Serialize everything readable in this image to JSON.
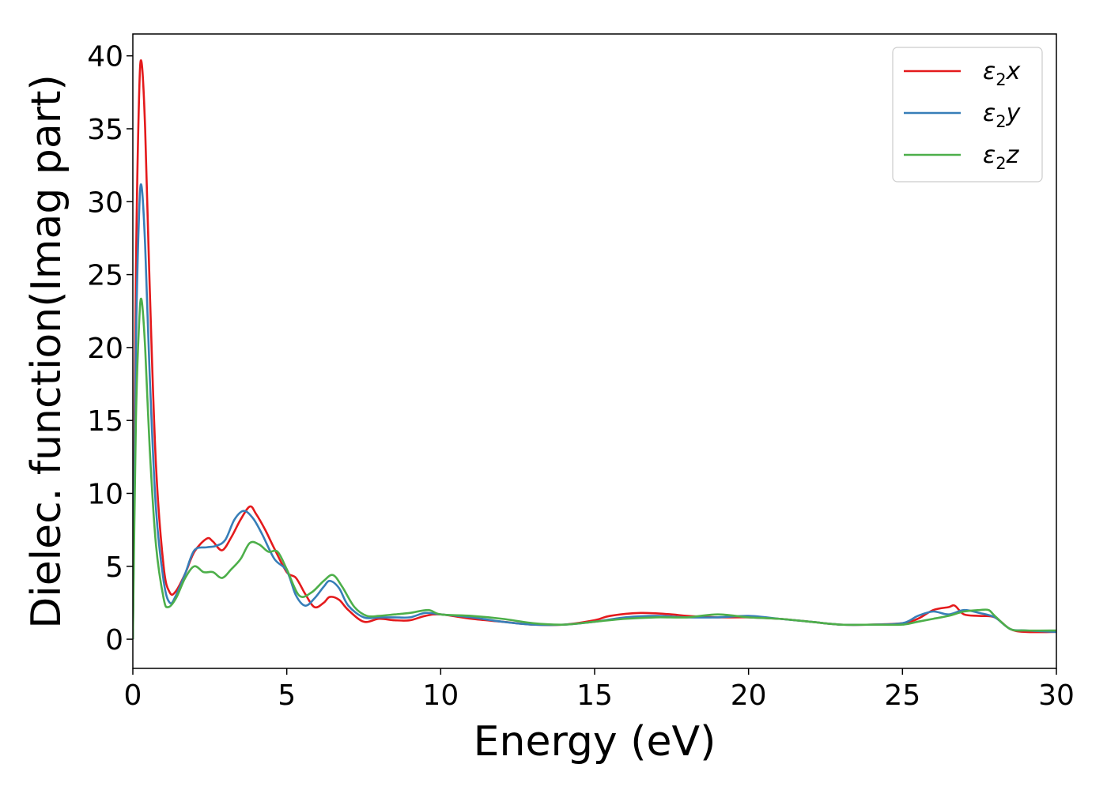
{
  "chart_data": {
    "type": "line",
    "title": "",
    "xlabel": "Energy (eV)",
    "ylabel": "Dielec. function(Imag part)",
    "xlim": [
      0,
      30
    ],
    "ylim": [
      -2,
      41.5
    ],
    "xticks": [
      0,
      5,
      10,
      15,
      20,
      25,
      30
    ],
    "yticks": [
      0,
      5,
      10,
      15,
      20,
      25,
      30,
      35,
      40
    ],
    "grid": false,
    "legend": {
      "position": "top-right"
    },
    "series": [
      {
        "name": "ε2x",
        "label_base": "ε",
        "label_sub": "2",
        "label_suffix": "x",
        "color": "#e41a1c",
        "x": [
          0,
          0.1,
          0.2,
          0.28,
          0.4,
          0.55,
          0.75,
          1.0,
          1.2,
          1.4,
          1.7,
          2.0,
          2.4,
          2.6,
          2.9,
          3.2,
          3.5,
          3.8,
          4.0,
          4.3,
          4.6,
          5.0,
          5.3,
          5.6,
          5.9,
          6.2,
          6.4,
          6.7,
          7.0,
          7.5,
          8.0,
          8.5,
          9.0,
          9.5,
          10.0,
          11.0,
          12.0,
          13.0,
          14.0,
          15.0,
          15.5,
          16.5,
          17.5,
          18.0,
          19.0,
          20.0,
          21.0,
          22.0,
          23.0,
          24.0,
          25.0,
          25.5,
          26.0,
          26.5,
          26.7,
          27.0,
          27.5,
          28.0,
          28.5,
          29.0,
          30.0
        ],
        "y": [
          0,
          25,
          37,
          39.6,
          35,
          24,
          12,
          5,
          3.2,
          3.3,
          4.5,
          6.0,
          6.9,
          6.7,
          6.1,
          7.0,
          8.2,
          9.1,
          8.6,
          7.5,
          6.2,
          4.6,
          4.2,
          3.1,
          2.2,
          2.5,
          2.9,
          2.7,
          2.0,
          1.2,
          1.4,
          1.3,
          1.3,
          1.6,
          1.7,
          1.4,
          1.2,
          1.0,
          1.0,
          1.3,
          1.6,
          1.8,
          1.7,
          1.6,
          1.5,
          1.5,
          1.4,
          1.2,
          1.0,
          1.0,
          1.1,
          1.4,
          2.0,
          2.2,
          2.3,
          1.7,
          1.6,
          1.5,
          0.7,
          0.5,
          0.5
        ]
      },
      {
        "name": "ε2y",
        "label_base": "ε",
        "label_sub": "2",
        "label_suffix": "y",
        "color": "#377eb8",
        "x": [
          0,
          0.1,
          0.2,
          0.28,
          0.4,
          0.55,
          0.75,
          1.0,
          1.2,
          1.4,
          1.7,
          2.0,
          2.4,
          2.7,
          3.0,
          3.3,
          3.6,
          3.9,
          4.2,
          4.6,
          5.0,
          5.3,
          5.6,
          5.9,
          6.2,
          6.4,
          6.7,
          7.0,
          7.5,
          8.0,
          8.5,
          9.0,
          9.5,
          10.0,
          11.0,
          12.0,
          13.0,
          14.0,
          15.0,
          16.0,
          17.0,
          18.0,
          19.0,
          20.0,
          21.0,
          22.0,
          23.0,
          24.0,
          25.0,
          25.5,
          26.0,
          26.5,
          27.0,
          27.5,
          28.0,
          28.5,
          29.0,
          30.0
        ],
        "y": [
          0,
          20,
          29,
          31.1,
          27,
          18,
          9,
          4,
          2.5,
          3.0,
          4.5,
          6.1,
          6.3,
          6.4,
          6.8,
          8.2,
          8.8,
          8.3,
          7.2,
          5.5,
          4.7,
          3.0,
          2.3,
          2.8,
          3.6,
          4.0,
          3.5,
          2.3,
          1.5,
          1.5,
          1.5,
          1.5,
          1.8,
          1.7,
          1.5,
          1.2,
          1.0,
          1.0,
          1.2,
          1.5,
          1.6,
          1.5,
          1.5,
          1.6,
          1.4,
          1.2,
          1.0,
          1.0,
          1.1,
          1.6,
          1.9,
          1.7,
          2.0,
          1.8,
          1.5,
          0.7,
          0.6,
          0.5
        ]
      },
      {
        "name": "ε2z",
        "label_base": "ε",
        "label_sub": "2",
        "label_suffix": "z",
        "color": "#4daf4a",
        "x": [
          0,
          0.1,
          0.2,
          0.28,
          0.4,
          0.55,
          0.75,
          1.0,
          1.15,
          1.4,
          1.7,
          2.0,
          2.3,
          2.6,
          2.9,
          3.2,
          3.5,
          3.8,
          4.1,
          4.4,
          4.7,
          5.0,
          5.4,
          5.8,
          6.2,
          6.5,
          6.8,
          7.2,
          7.6,
          8.0,
          8.5,
          9.0,
          9.6,
          10.0,
          11.0,
          12.0,
          13.0,
          14.0,
          15.0,
          16.0,
          17.0,
          18.0,
          19.0,
          20.0,
          21.0,
          22.0,
          23.0,
          24.0,
          25.0,
          25.5,
          26.0,
          26.5,
          27.0,
          27.5,
          27.8,
          28.0,
          28.5,
          29.0,
          30.0
        ],
        "y": [
          0,
          15,
          21.5,
          23.3,
          20,
          13,
          6.5,
          2.8,
          2.2,
          2.8,
          4.2,
          5.0,
          4.6,
          4.6,
          4.2,
          4.8,
          5.5,
          6.6,
          6.5,
          6.0,
          6.0,
          4.8,
          3.0,
          3.2,
          4.0,
          4.4,
          3.6,
          2.2,
          1.6,
          1.6,
          1.7,
          1.8,
          2.0,
          1.7,
          1.6,
          1.4,
          1.1,
          1.0,
          1.2,
          1.4,
          1.5,
          1.5,
          1.7,
          1.5,
          1.4,
          1.2,
          1.0,
          1.0,
          1.0,
          1.2,
          1.4,
          1.6,
          1.9,
          2.0,
          2.0,
          1.6,
          0.7,
          0.6,
          0.6
        ]
      }
    ]
  }
}
